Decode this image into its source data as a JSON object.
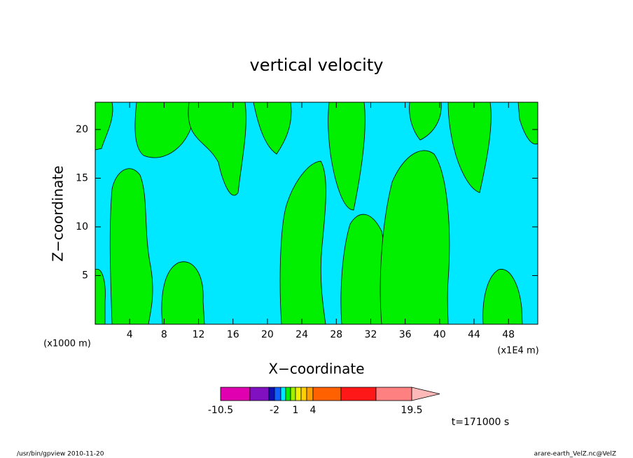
{
  "chart_data": {
    "type": "contour",
    "title": "vertical velocity",
    "xlabel": "X−coordinate",
    "ylabel": "Z−coordinate",
    "x_unit": "(x1E4 m)",
    "y_unit": "(x1000 m)",
    "xlim": [
      0,
      51.4
    ],
    "ylim": [
      0,
      22.8
    ],
    "xticks": [
      4,
      8,
      12,
      16,
      20,
      24,
      28,
      32,
      36,
      40,
      44,
      48
    ],
    "yticks": [
      5,
      10,
      15,
      20
    ],
    "colorbar": {
      "levels": [
        -10.5,
        -6.5,
        -3,
        -2,
        -1,
        0,
        0.5,
        1,
        2,
        3,
        4,
        9.5,
        14.5,
        19.5
      ],
      "colors": [
        "#e000b0",
        "#8010c0",
        "#1010b0",
        "#1060ff",
        "#00e8ff",
        "#00f000",
        "#a0f000",
        "#f0f000",
        "#ffd000",
        "#ffa000",
        "#ff6000",
        "#ff1818",
        "#ff8080",
        "#ffb8b8"
      ],
      "ticks": [
        -10.5,
        -2,
        1,
        4,
        19.5
      ]
    },
    "annotation": "t=171000 s",
    "footer_left": "/usr/bin/gpview   2010-11-20",
    "footer_right": "arare-earth_VelZ.nc@VelZ"
  }
}
